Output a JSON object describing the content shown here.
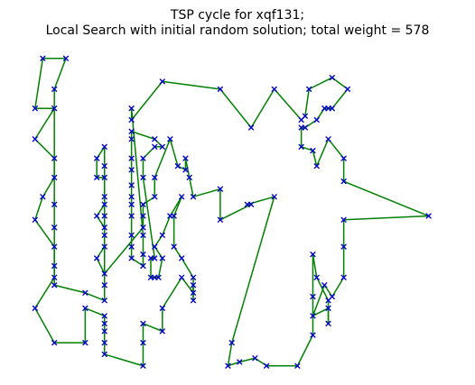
{
  "chart_data": {
    "type": "line",
    "title_lines": [
      "TSP cycle for xqf131;",
      "Local Search with initial random solution; total weight = 578"
    ],
    "xlabel": "",
    "ylabel": "",
    "xlim": [
      -3,
      107
    ],
    "ylim": [
      -3,
      81
    ],
    "axes_visible": false,
    "grid": false,
    "edge_color": "#008000",
    "marker_color": "#0000cc",
    "marker": "x",
    "tour": [
      [
        0,
        13
      ],
      [
        2,
        0
      ],
      [
        8,
        0
      ],
      [
        5,
        8
      ],
      [
        5,
        13
      ],
      [
        0,
        21
      ],
      [
        5,
        26
      ],
      [
        5,
        31
      ],
      [
        2,
        36
      ],
      [
        0,
        42
      ],
      [
        5,
        49
      ],
      [
        5,
        57
      ],
      [
        0,
        65
      ],
      [
        5,
        74
      ],
      [
        13,
        74
      ],
      [
        13,
        65
      ],
      [
        18,
        67
      ],
      [
        18,
        69
      ],
      [
        18,
        71
      ],
      [
        18,
        74
      ],
      [
        18,
        77
      ],
      [
        28,
        80
      ],
      [
        28,
        74
      ],
      [
        28,
        69
      ],
      [
        33,
        71
      ],
      [
        33,
        65
      ],
      [
        38,
        57
      ],
      [
        41,
        61
      ],
      [
        41,
        59
      ],
      [
        41,
        63
      ],
      [
        41,
        57
      ],
      [
        38,
        52
      ],
      [
        36,
        49
      ],
      [
        36,
        41
      ],
      [
        38,
        36
      ],
      [
        35,
        41
      ],
      [
        33,
        46
      ],
      [
        31,
        49
      ],
      [
        33,
        52
      ],
      [
        32,
        57
      ],
      [
        31,
        57
      ],
      [
        30,
        57
      ],
      [
        30,
        52
      ],
      [
        31,
        52
      ],
      [
        28,
        31
      ],
      [
        28,
        26
      ],
      [
        31,
        23
      ],
      [
        33,
        23
      ],
      [
        31,
        21
      ],
      [
        25,
        19
      ],
      [
        25,
        21
      ],
      [
        25,
        26
      ],
      [
        25,
        29
      ],
      [
        25,
        33
      ],
      [
        25,
        36
      ],
      [
        25,
        38
      ],
      [
        25,
        41
      ],
      [
        25,
        46
      ],
      [
        25,
        49
      ],
      [
        25,
        52
      ],
      [
        28,
        54
      ],
      [
        28,
        51
      ],
      [
        28,
        46
      ],
      [
        25,
        13
      ],
      [
        25,
        16
      ],
      [
        33,
        6
      ],
      [
        48,
        8
      ],
      [
        56,
        18
      ],
      [
        62,
        8
      ],
      [
        69,
        16
      ],
      [
        70,
        15
      ],
      [
        71,
        8
      ],
      [
        77,
        5
      ],
      [
        81,
        8
      ],
      [
        77,
        13
      ],
      [
        76,
        13
      ],
      [
        75,
        13
      ],
      [
        73,
        16
      ],
      [
        70,
        18
      ],
      [
        69,
        18
      ],
      [
        69,
        23
      ],
      [
        72,
        24
      ],
      [
        73,
        28
      ],
      [
        76,
        21
      ],
      [
        80,
        26
      ],
      [
        80,
        32
      ],
      [
        102,
        41
      ],
      [
        80,
        42
      ],
      [
        80,
        49
      ],
      [
        80,
        57
      ],
      [
        77,
        62
      ],
      [
        75,
        59
      ],
      [
        72,
        67
      ],
      [
        76,
        65
      ],
      [
        76,
        69
      ],
      [
        76,
        63
      ],
      [
        73,
        57
      ],
      [
        72,
        51
      ],
      [
        72,
        62
      ],
      [
        72,
        67
      ],
      [
        72,
        72
      ],
      [
        68,
        80
      ],
      [
        60,
        80
      ],
      [
        57,
        78
      ],
      [
        53,
        79
      ],
      [
        50,
        80
      ],
      [
        51,
        74
      ],
      [
        62,
        36
      ],
      [
        55,
        38
      ],
      [
        56,
        38
      ],
      [
        48,
        42
      ],
      [
        48,
        34
      ],
      [
        41,
        36
      ],
      [
        40,
        31
      ],
      [
        39,
        26
      ],
      [
        39,
        29
      ],
      [
        37,
        28
      ],
      [
        35,
        21
      ],
      [
        31,
        31
      ],
      [
        31,
        36
      ],
      [
        28,
        38
      ],
      [
        28,
        41
      ],
      [
        28,
        44
      ],
      [
        18,
        56
      ],
      [
        18,
        46
      ],
      [
        18,
        41
      ],
      [
        18,
        36
      ],
      [
        18,
        31
      ],
      [
        18,
        28
      ],
      [
        18,
        23
      ],
      [
        16,
        26
      ],
      [
        16,
        31
      ],
      [
        18,
        31
      ],
      [
        18,
        38
      ],
      [
        16,
        41
      ],
      [
        18,
        44
      ],
      [
        18,
        49
      ],
      [
        16,
        52
      ],
      [
        18,
        56
      ],
      [
        18,
        59
      ],
      [
        18,
        63
      ],
      [
        13,
        61
      ],
      [
        5,
        59
      ],
      [
        5,
        54
      ],
      [
        5,
        44
      ],
      [
        5,
        38
      ],
      [
        5,
        26
      ],
      [
        5,
        13
      ],
      [
        0,
        13
      ]
    ]
  }
}
